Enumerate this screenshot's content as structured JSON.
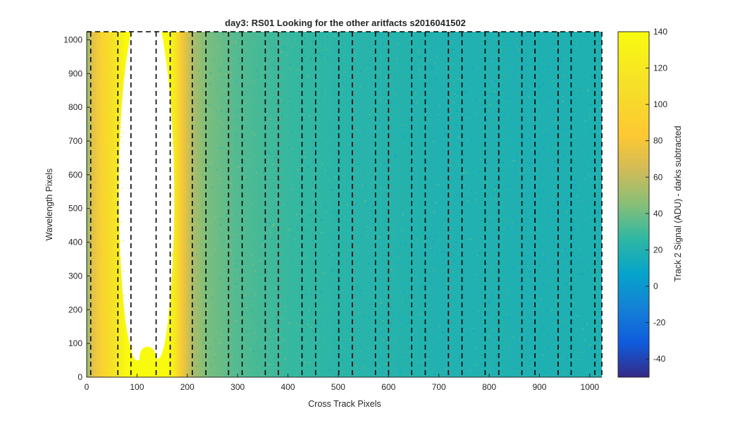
{
  "chart_data": {
    "type": "heatmap",
    "title": "day3: RS01  Looking for the other aritfacts  s2016041502",
    "xlabel": "Cross Track Pixels",
    "ylabel": "Wavelength Pixels",
    "xlim": [
      0,
      1024
    ],
    "ylim": [
      0,
      1024
    ],
    "xticks": [
      0,
      100,
      200,
      300,
      400,
      500,
      600,
      700,
      800,
      900,
      1000
    ],
    "yticks": [
      0,
      100,
      200,
      300,
      400,
      500,
      600,
      700,
      800,
      900,
      1000
    ],
    "grid": true,
    "colormap": "parula",
    "colorbar": {
      "label": "Track 2 Signal (ADU) - darks subtracted",
      "min": -50,
      "max": 140,
      "ticks": [
        -40,
        -20,
        0,
        20,
        40,
        60,
        80,
        100,
        120,
        140
      ]
    },
    "saturated_region": {
      "description": "values above colorbar max (white)",
      "x_range": [
        80,
        160
      ],
      "y_range": [
        40,
        1024
      ]
    },
    "profile": {
      "x": [
        0,
        10,
        30,
        50,
        65,
        80,
        160,
        175,
        190,
        210,
        240,
        300,
        400,
        500,
        600,
        700,
        800,
        900,
        1024
      ],
      "signal_adu": [
        45,
        70,
        95,
        110,
        125,
        140,
        140,
        120,
        80,
        55,
        42,
        34,
        28,
        24,
        22,
        20,
        20,
        19,
        19
      ]
    },
    "dashed_markers": {
      "style": "black dashed vertical lines",
      "x": [
        8,
        62,
        88,
        138,
        166,
        210,
        237,
        282,
        309,
        355,
        381,
        428,
        455,
        501,
        528,
        574,
        600,
        646,
        673,
        719,
        746,
        792,
        819,
        865,
        891,
        937,
        963,
        1010
      ]
    },
    "dashed_box": {
      "y_top": 1024
    }
  }
}
